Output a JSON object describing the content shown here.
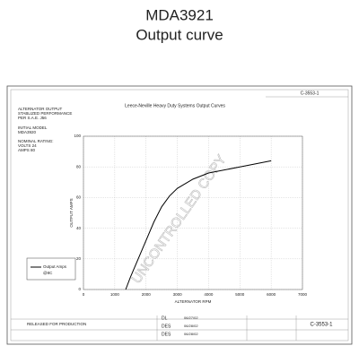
{
  "header": {
    "title": "MDA3921",
    "subtitle": "Output curve"
  },
  "notes": [
    "ALTERNATOR OUTPUT",
    "STABLIZED PERFORMANCE",
    "PER S.A.E. J56",
    "INITIAL MODEL",
    "MDA3920",
    "NOMINAL RATING:",
    "VOLTS 24",
    "AMPS 80"
  ],
  "drawing_number": "C-3553-1",
  "title_block": {
    "release": "RELEASED FOR PRODUCTION",
    "roles": [
      "DL",
      "DES",
      "DES"
    ],
    "dates": [
      "06/27/02",
      "06/28/02",
      "06/28/02"
    ],
    "drawing_number": "C-3553-1"
  },
  "watermark": "UNCONTROLLED COPY",
  "chart_data": {
    "type": "line",
    "title": "Leece-Neville Heavy Duty Systems Output Curves",
    "x_label": "ALTERNATOR RPM",
    "y_label": "OUTPUT AMPS",
    "x": [
      1350,
      1500,
      1750,
      2000,
      2250,
      2500,
      2750,
      3000,
      3500,
      4000,
      5000,
      6000
    ],
    "series": [
      {
        "name": "Output Amps",
        "color": "#000000",
        "values": [
          0,
          8,
          20,
          32,
          44,
          54,
          61,
          66,
          72,
          76,
          80,
          84
        ]
      }
    ],
    "legend_note": "@8C",
    "xlim": [
      0,
      7000
    ],
    "xticks": [
      0,
      1000,
      2000,
      3000,
      4000,
      5000,
      6000,
      7000
    ],
    "ylim": [
      0,
      100
    ],
    "yticks": [
      0,
      20,
      40,
      60,
      80,
      100
    ],
    "grid": true
  }
}
